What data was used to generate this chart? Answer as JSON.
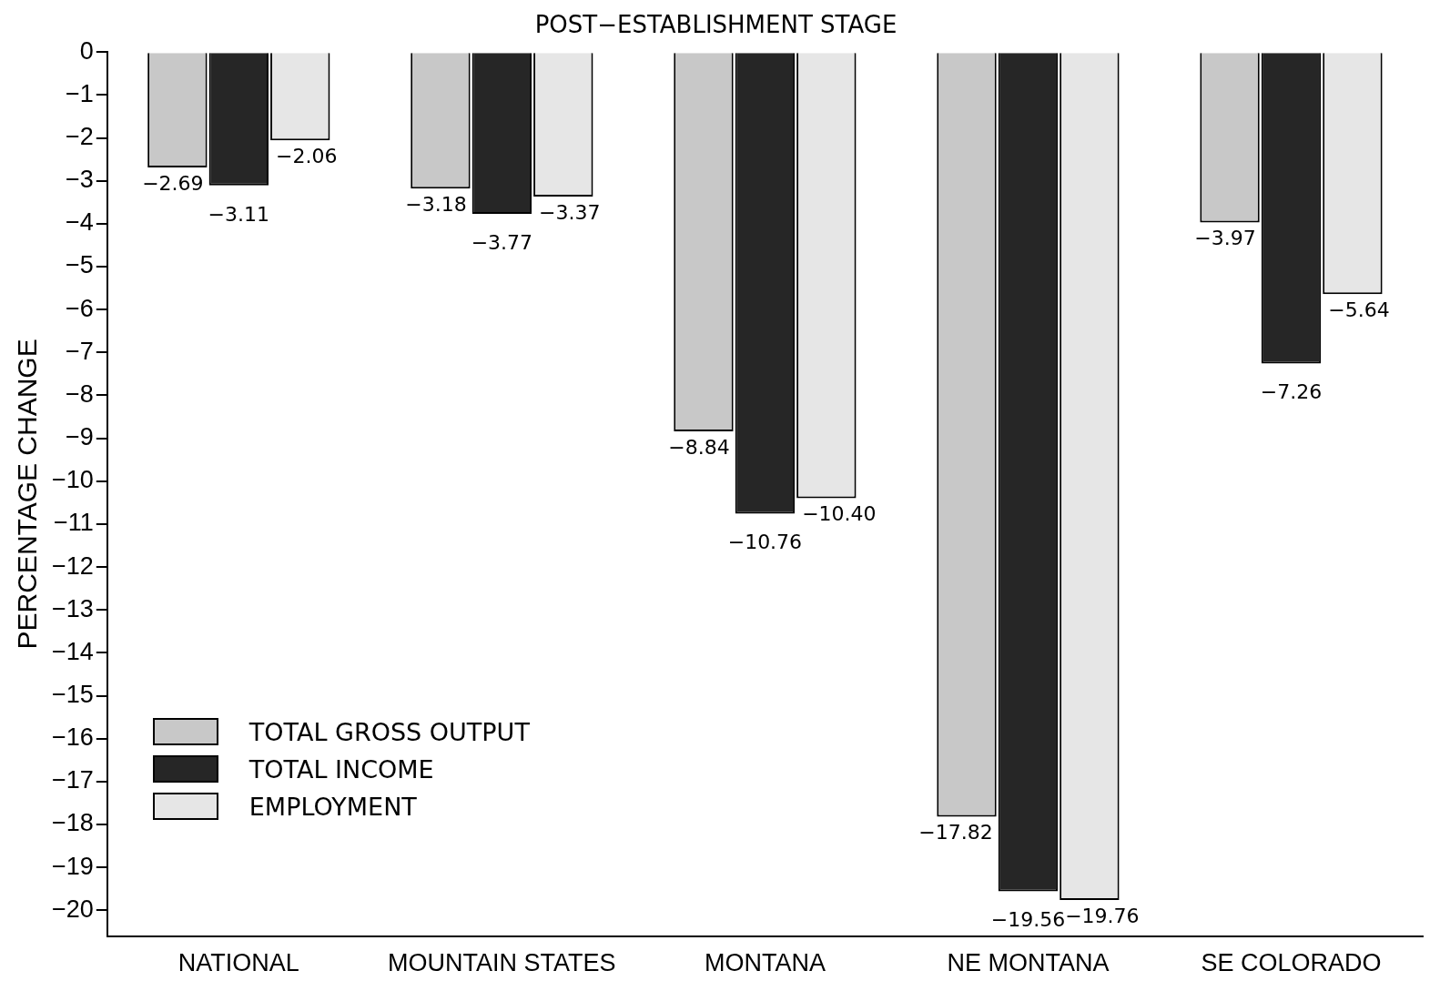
{
  "chart_data": {
    "type": "bar",
    "title": "POST−ESTABLISHMENT STAGE",
    "ylabel": "PERCENTAGE CHANGE",
    "categories": [
      "NATIONAL",
      "MOUNTAIN STATES",
      "MONTANA",
      "NE MONTANA",
      "SE COLORADO"
    ],
    "series": [
      {
        "name": "TOTAL GROSS OUTPUT",
        "color": "#c8c8c8",
        "values": [
          -2.69,
          -3.18,
          -8.84,
          -17.82,
          -3.97
        ]
      },
      {
        "name": "TOTAL INCOME",
        "color": "#262626",
        "values": [
          -3.11,
          -3.77,
          -10.76,
          -19.56,
          -7.26
        ]
      },
      {
        "name": "EMPLOYMENT",
        "color": "#e6e6e6",
        "values": [
          -2.06,
          -3.37,
          -10.4,
          -19.76,
          -5.64
        ]
      }
    ],
    "value_labels": [
      [
        "−2.69",
        "−3.18",
        "−8.84",
        "−17.82",
        "−3.97"
      ],
      [
        "−3.11",
        "−3.77",
        "−10.76",
        "−19.56",
        "−7.26"
      ],
      [
        "−2.06",
        "−3.37",
        "−10.40",
        "−19.76",
        "−5.64"
      ]
    ],
    "ylim": [
      -20.6,
      0
    ],
    "yticks": [
      {
        "value": 0,
        "label": "0"
      },
      {
        "value": -1,
        "label": "−1"
      },
      {
        "value": -2,
        "label": "−2"
      },
      {
        "value": -3,
        "label": "−3"
      },
      {
        "value": -4,
        "label": "−4"
      },
      {
        "value": -5,
        "label": "−5"
      },
      {
        "value": -6,
        "label": "−6"
      },
      {
        "value": -7,
        "label": "−7"
      },
      {
        "value": -8,
        "label": "−8"
      },
      {
        "value": -9,
        "label": "−9"
      },
      {
        "value": -10,
        "label": "−10"
      },
      {
        "value": -11,
        "label": "−11"
      },
      {
        "value": -12,
        "label": "−12"
      },
      {
        "value": -13,
        "label": "−13"
      },
      {
        "value": -14,
        "label": "−14"
      },
      {
        "value": -15,
        "label": "−15"
      },
      {
        "value": -16,
        "label": "−16"
      },
      {
        "value": -17,
        "label": "−17"
      },
      {
        "value": -18,
        "label": "−18"
      },
      {
        "value": -19,
        "label": "−19"
      },
      {
        "value": -20,
        "label": "−20"
      }
    ],
    "grid": false,
    "legend": "bottom left"
  }
}
